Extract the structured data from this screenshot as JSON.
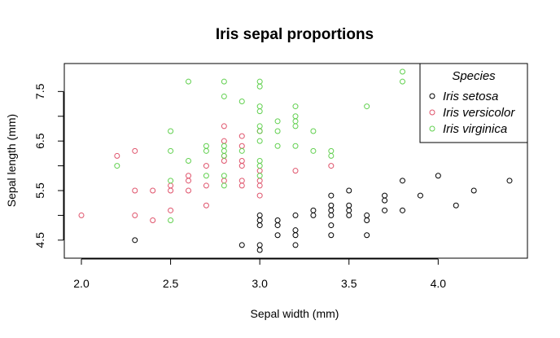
{
  "chart_data": {
    "type": "scatter",
    "title": "Iris sepal proportions",
    "xlabel": "Sepal width (mm)",
    "ylabel": "Sepal length (mm)",
    "xlim": [
      2.0,
      4.4
    ],
    "ylim": [
      4.3,
      7.9
    ],
    "xticks": [
      2.0,
      2.5,
      3.0,
      3.5,
      4.0
    ],
    "xtick_labels": [
      "2.0",
      "2.5",
      "3.0",
      "3.5",
      "4.0"
    ],
    "yticks": [
      4.5,
      5.5,
      6.5,
      7.5
    ],
    "ytick_labels": [
      "4.5",
      "5.5",
      "6.5",
      "7.5"
    ],
    "grid": false,
    "marker": "open-circle",
    "legend": {
      "title": "Species",
      "placement": "top-right"
    },
    "series": [
      {
        "name": "Iris setosa",
        "color": "#000000",
        "points": [
          [
            2.3,
            4.5
          ],
          [
            2.9,
            4.4
          ],
          [
            3.0,
            4.3
          ],
          [
            3.0,
            4.4
          ],
          [
            3.1,
            4.6
          ],
          [
            3.2,
            4.4
          ],
          [
            3.2,
            4.6
          ],
          [
            3.2,
            4.7
          ],
          [
            3.4,
            4.6
          ],
          [
            3.6,
            4.6
          ],
          [
            3.0,
            4.8
          ],
          [
            3.0,
            4.9
          ],
          [
            3.0,
            5.0
          ],
          [
            3.1,
            4.8
          ],
          [
            3.1,
            4.9
          ],
          [
            3.2,
            5.0
          ],
          [
            3.3,
            5.0
          ],
          [
            3.3,
            5.1
          ],
          [
            3.4,
            4.8
          ],
          [
            3.4,
            5.0
          ],
          [
            3.4,
            5.1
          ],
          [
            3.4,
            5.2
          ],
          [
            3.4,
            5.4
          ],
          [
            3.5,
            5.0
          ],
          [
            3.5,
            5.1
          ],
          [
            3.5,
            5.2
          ],
          [
            3.5,
            5.5
          ],
          [
            3.6,
            4.9
          ],
          [
            3.6,
            5.0
          ],
          [
            3.7,
            5.1
          ],
          [
            3.7,
            5.3
          ],
          [
            3.7,
            5.4
          ],
          [
            3.8,
            5.1
          ],
          [
            3.8,
            5.7
          ],
          [
            3.9,
            5.4
          ],
          [
            4.0,
            5.8
          ],
          [
            4.1,
            5.2
          ],
          [
            4.2,
            5.5
          ],
          [
            4.4,
            5.7
          ]
        ]
      },
      {
        "name": "Iris versicolor",
        "color": "#df536b",
        "points": [
          [
            2.0,
            5.0
          ],
          [
            2.2,
            6.2
          ],
          [
            2.3,
            5.0
          ],
          [
            2.3,
            5.5
          ],
          [
            2.3,
            6.3
          ],
          [
            2.4,
            4.9
          ],
          [
            2.4,
            5.5
          ],
          [
            2.5,
            5.1
          ],
          [
            2.5,
            5.5
          ],
          [
            2.5,
            5.6
          ],
          [
            2.6,
            5.5
          ],
          [
            2.6,
            5.7
          ],
          [
            2.6,
            5.8
          ],
          [
            2.7,
            5.2
          ],
          [
            2.7,
            5.6
          ],
          [
            2.7,
            6.0
          ],
          [
            2.8,
            5.7
          ],
          [
            2.8,
            6.1
          ],
          [
            2.8,
            6.2
          ],
          [
            2.8,
            6.5
          ],
          [
            2.8,
            6.8
          ],
          [
            2.9,
            5.6
          ],
          [
            2.9,
            5.7
          ],
          [
            2.9,
            6.0
          ],
          [
            2.9,
            6.1
          ],
          [
            2.9,
            6.4
          ],
          [
            2.9,
            6.6
          ],
          [
            3.0,
            5.4
          ],
          [
            3.0,
            5.6
          ],
          [
            3.0,
            5.7
          ],
          [
            3.0,
            5.9
          ],
          [
            3.0,
            6.7
          ],
          [
            3.2,
            5.9
          ],
          [
            3.4,
            6.0
          ]
        ]
      },
      {
        "name": "Iris virginica",
        "color": "#61d04f",
        "points": [
          [
            2.2,
            6.0
          ],
          [
            2.5,
            4.9
          ],
          [
            2.5,
            5.7
          ],
          [
            2.5,
            6.3
          ],
          [
            2.5,
            6.7
          ],
          [
            2.6,
            6.1
          ],
          [
            2.6,
            7.7
          ],
          [
            2.7,
            5.8
          ],
          [
            2.7,
            6.3
          ],
          [
            2.7,
            6.4
          ],
          [
            2.8,
            5.6
          ],
          [
            2.8,
            5.8
          ],
          [
            2.8,
            6.2
          ],
          [
            2.8,
            6.3
          ],
          [
            2.8,
            6.4
          ],
          [
            2.8,
            7.4
          ],
          [
            2.8,
            7.7
          ],
          [
            2.9,
            6.3
          ],
          [
            2.9,
            7.3
          ],
          [
            3.0,
            5.8
          ],
          [
            3.0,
            6.0
          ],
          [
            3.0,
            6.1
          ],
          [
            3.0,
            6.5
          ],
          [
            3.0,
            6.7
          ],
          [
            3.0,
            6.8
          ],
          [
            3.0,
            7.1
          ],
          [
            3.0,
            7.2
          ],
          [
            3.0,
            7.6
          ],
          [
            3.0,
            7.7
          ],
          [
            3.1,
            6.4
          ],
          [
            3.1,
            6.7
          ],
          [
            3.1,
            6.9
          ],
          [
            3.2,
            6.4
          ],
          [
            3.2,
            6.8
          ],
          [
            3.2,
            6.9
          ],
          [
            3.2,
            7.0
          ],
          [
            3.2,
            7.2
          ],
          [
            3.3,
            6.3
          ],
          [
            3.3,
            6.7
          ],
          [
            3.4,
            6.2
          ],
          [
            3.4,
            6.3
          ],
          [
            3.6,
            7.2
          ],
          [
            3.8,
            7.7
          ],
          [
            3.8,
            7.9
          ]
        ]
      }
    ]
  }
}
